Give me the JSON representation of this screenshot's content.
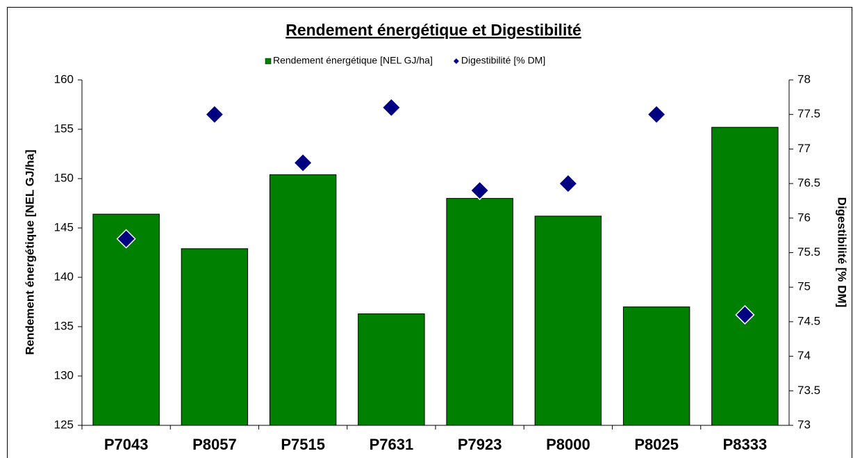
{
  "chart_data": {
    "type": "bar",
    "title": "Rendement énergétique et Digestibilité",
    "categories": [
      "P7043",
      "P8057",
      "P7515",
      "P7631",
      "P7923",
      "P8000",
      "P8025",
      "P8333"
    ],
    "series": [
      {
        "name": "Rendement énergétique [NEL GJ/ha]",
        "color": "#008000",
        "values": [
          146.4,
          142.9,
          150.4,
          136.3,
          148.0,
          146.2,
          137.0,
          155.2
        ]
      },
      {
        "name": "Digestibilité [% DM]",
        "type": "scatter",
        "axis": "y2",
        "color": "#000080",
        "values": [
          75.7,
          77.5,
          76.8,
          77.6,
          76.4,
          76.5,
          77.5,
          74.6
        ]
      }
    ],
    "y_label": "Rendement énergétique [NEL GJ/ha]",
    "y2_label": "Digestibilité [% DM]",
    "ylim": [
      125,
      160
    ],
    "yticks": [
      125,
      130,
      135,
      140,
      145,
      150,
      155,
      160
    ],
    "y2lim": [
      73,
      78
    ],
    "y2ticks": [
      73,
      73.5,
      74,
      74.5,
      75,
      75.5,
      76,
      76.5,
      77,
      77.5,
      78
    ],
    "legend": "top"
  }
}
